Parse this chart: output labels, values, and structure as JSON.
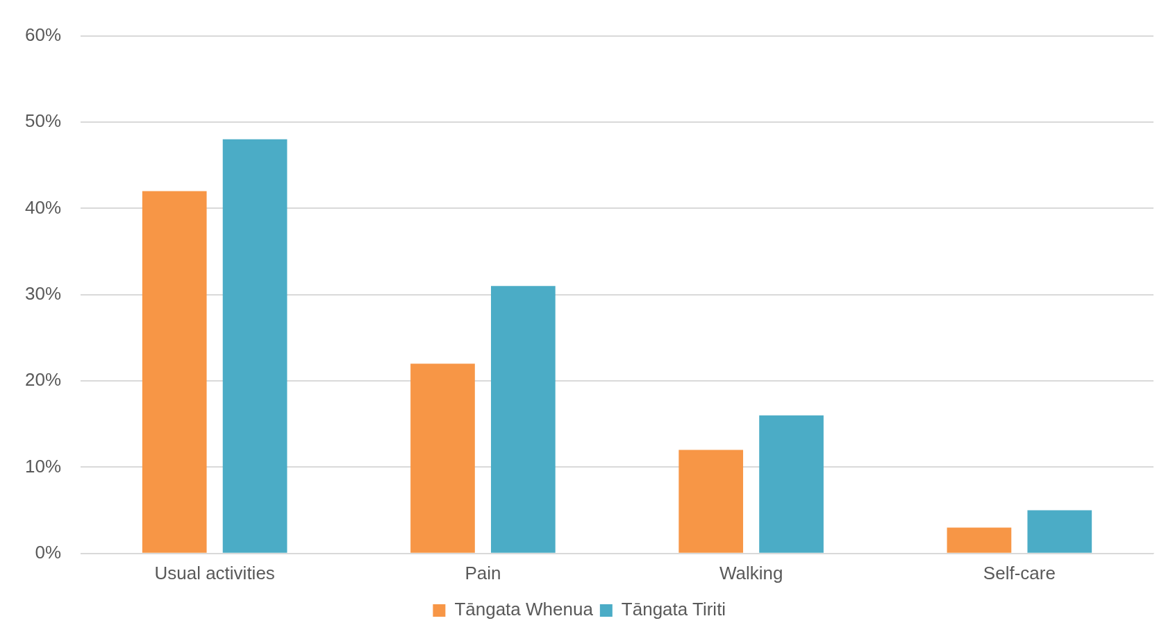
{
  "chart_data": {
    "type": "bar",
    "categories": [
      "Usual activities",
      "Pain",
      "Walking",
      "Self-care"
    ],
    "series": [
      {
        "name": "Tāngata Whenua",
        "color": "#f79646",
        "values": [
          42,
          22,
          12,
          3
        ]
      },
      {
        "name": "Tāngata Tiriti",
        "color": "#4bacc6",
        "values": [
          48,
          31,
          16,
          5
        ]
      }
    ],
    "ylim": [
      0,
      60
    ],
    "yticks": [
      {
        "value": 0,
        "label": "0%"
      },
      {
        "value": 10,
        "label": "10%"
      },
      {
        "value": 20,
        "label": "20%"
      },
      {
        "value": 30,
        "label": "30%"
      },
      {
        "value": 40,
        "label": "40%"
      },
      {
        "value": 50,
        "label": "50%"
      },
      {
        "value": 60,
        "label": "60%"
      }
    ],
    "grid": "y",
    "legend": "bottom"
  }
}
